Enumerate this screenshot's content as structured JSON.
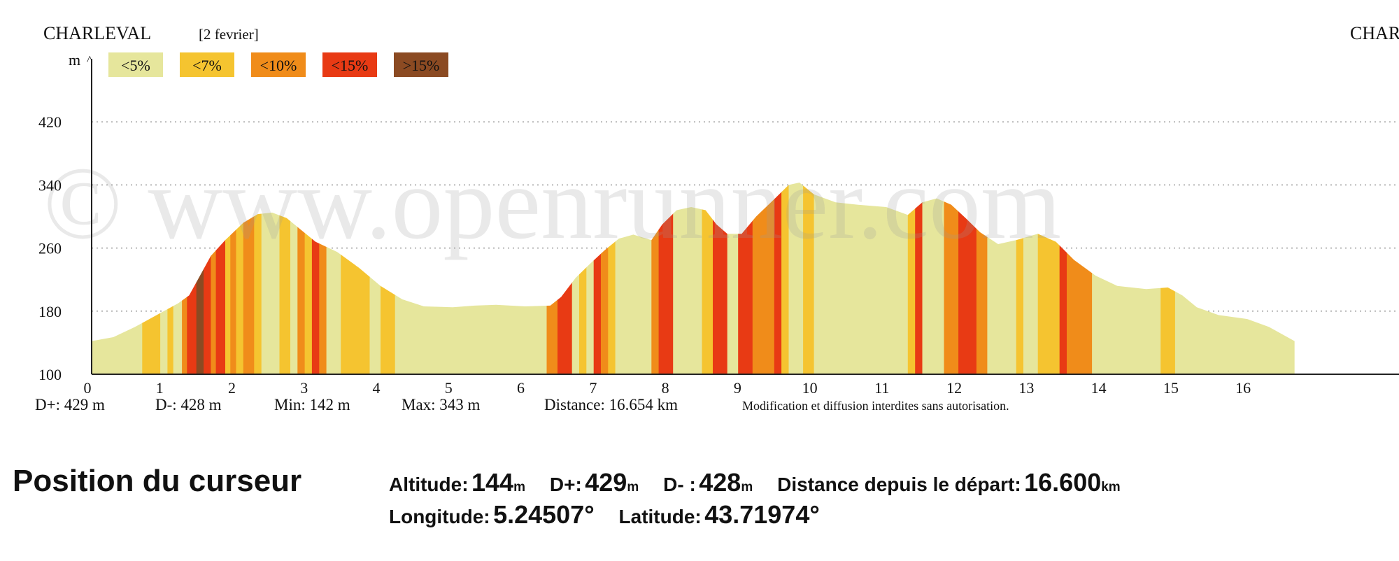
{
  "header": {
    "start_town": "CHARLEVAL",
    "date": "[2 fevrier]",
    "end_town": "CHAR"
  },
  "chart_data": {
    "type": "area",
    "xlabel": "",
    "ylabel": "m",
    "xlim": [
      0,
      18.1
    ],
    "ylim": [
      100,
      500
    ],
    "x_ticks": [
      0,
      1,
      2,
      3,
      4,
      5,
      6,
      7,
      8,
      9,
      10,
      11,
      12,
      13,
      14,
      15,
      16
    ],
    "y_ticks": [
      100,
      180,
      260,
      340,
      420
    ],
    "grid": true,
    "legend": [
      {
        "label": "<5%",
        "color": "#e6e69c"
      },
      {
        "label": "<7%",
        "color": "#f5c430"
      },
      {
        "label": "<10%",
        "color": "#f08c1a"
      },
      {
        "label": "<15%",
        "color": "#e83a14"
      },
      {
        "label": ">15%",
        "color": "#8b4a22"
      }
    ],
    "profile": [
      [
        0,
        142
      ],
      [
        0.3,
        147
      ],
      [
        0.6,
        160
      ],
      [
        0.8,
        170
      ],
      [
        1.0,
        180
      ],
      [
        1.2,
        190
      ],
      [
        1.35,
        200
      ],
      [
        1.5,
        225
      ],
      [
        1.65,
        250
      ],
      [
        1.85,
        270
      ],
      [
        2.1,
        292
      ],
      [
        2.3,
        303
      ],
      [
        2.5,
        305
      ],
      [
        2.7,
        298
      ],
      [
        2.9,
        283
      ],
      [
        3.1,
        268
      ],
      [
        3.4,
        255
      ],
      [
        3.7,
        235
      ],
      [
        4.0,
        212
      ],
      [
        4.3,
        195
      ],
      [
        4.6,
        186
      ],
      [
        5.0,
        185
      ],
      [
        5.3,
        187
      ],
      [
        5.6,
        188
      ],
      [
        6.0,
        186
      ],
      [
        6.35,
        187
      ],
      [
        6.5,
        198
      ],
      [
        6.7,
        222
      ],
      [
        6.9,
        240
      ],
      [
        7.1,
        257
      ],
      [
        7.3,
        272
      ],
      [
        7.5,
        277
      ],
      [
        7.75,
        270
      ],
      [
        7.9,
        290
      ],
      [
        8.1,
        308
      ],
      [
        8.3,
        312
      ],
      [
        8.5,
        308
      ],
      [
        8.65,
        290
      ],
      [
        8.8,
        278
      ],
      [
        9.0,
        278
      ],
      [
        9.2,
        300
      ],
      [
        9.45,
        322
      ],
      [
        9.65,
        340
      ],
      [
        9.8,
        343
      ],
      [
        10.0,
        328
      ],
      [
        10.3,
        318
      ],
      [
        10.6,
        315
      ],
      [
        11.0,
        312
      ],
      [
        11.3,
        302
      ],
      [
        11.5,
        318
      ],
      [
        11.7,
        323
      ],
      [
        11.9,
        315
      ],
      [
        12.1,
        298
      ],
      [
        12.3,
        280
      ],
      [
        12.55,
        265
      ],
      [
        12.8,
        270
      ],
      [
        13.1,
        278
      ],
      [
        13.35,
        268
      ],
      [
        13.6,
        245
      ],
      [
        13.9,
        225
      ],
      [
        14.2,
        212
      ],
      [
        14.6,
        208
      ],
      [
        14.9,
        210
      ],
      [
        15.1,
        200
      ],
      [
        15.3,
        185
      ],
      [
        15.6,
        175
      ],
      [
        16.0,
        170
      ],
      [
        16.3,
        160
      ],
      [
        16.654,
        142
      ]
    ],
    "grade_segments": [
      [
        0,
        0.7,
        0
      ],
      [
        0.7,
        0.95,
        1
      ],
      [
        0.95,
        1.05,
        0
      ],
      [
        1.05,
        1.13,
        1
      ],
      [
        1.13,
        1.25,
        0
      ],
      [
        1.25,
        1.32,
        2
      ],
      [
        1.32,
        1.45,
        3
      ],
      [
        1.45,
        1.55,
        4
      ],
      [
        1.55,
        1.65,
        3
      ],
      [
        1.65,
        1.72,
        2
      ],
      [
        1.72,
        1.85,
        3
      ],
      [
        1.85,
        1.92,
        1
      ],
      [
        1.92,
        2.0,
        2
      ],
      [
        2.0,
        2.1,
        1
      ],
      [
        2.1,
        2.25,
        2
      ],
      [
        2.25,
        2.35,
        1
      ],
      [
        2.35,
        2.6,
        0
      ],
      [
        2.6,
        2.75,
        1
      ],
      [
        2.75,
        2.85,
        0
      ],
      [
        2.85,
        2.95,
        2
      ],
      [
        2.95,
        3.05,
        1
      ],
      [
        3.05,
        3.15,
        3
      ],
      [
        3.15,
        3.25,
        2
      ],
      [
        3.25,
        3.45,
        0
      ],
      [
        3.45,
        3.85,
        1
      ],
      [
        3.85,
        4.0,
        0
      ],
      [
        4.0,
        4.2,
        1
      ],
      [
        4.2,
        6.3,
        0
      ],
      [
        6.3,
        6.45,
        2
      ],
      [
        6.45,
        6.65,
        3
      ],
      [
        6.65,
        6.75,
        0
      ],
      [
        6.75,
        6.85,
        1
      ],
      [
        6.85,
        6.95,
        0
      ],
      [
        6.95,
        7.05,
        3
      ],
      [
        7.05,
        7.15,
        2
      ],
      [
        7.15,
        7.25,
        1
      ],
      [
        7.25,
        7.75,
        0
      ],
      [
        7.75,
        7.85,
        2
      ],
      [
        7.85,
        8.05,
        3
      ],
      [
        8.05,
        8.45,
        0
      ],
      [
        8.45,
        8.6,
        1
      ],
      [
        8.6,
        8.8,
        3
      ],
      [
        8.8,
        8.95,
        0
      ],
      [
        8.95,
        9.15,
        3
      ],
      [
        9.15,
        9.45,
        2
      ],
      [
        9.45,
        9.55,
        3
      ],
      [
        9.55,
        9.65,
        1
      ],
      [
        9.65,
        9.85,
        0
      ],
      [
        9.85,
        10.0,
        1
      ],
      [
        10.0,
        11.3,
        0
      ],
      [
        11.3,
        11.4,
        1
      ],
      [
        11.4,
        11.5,
        3
      ],
      [
        11.5,
        11.8,
        0
      ],
      [
        11.8,
        12.0,
        2
      ],
      [
        12.0,
        12.25,
        3
      ],
      [
        12.25,
        12.4,
        2
      ],
      [
        12.4,
        12.8,
        0
      ],
      [
        12.8,
        12.9,
        1
      ],
      [
        12.9,
        13.1,
        0
      ],
      [
        13.1,
        13.4,
        1
      ],
      [
        13.4,
        13.5,
        3
      ],
      [
        13.5,
        13.85,
        2
      ],
      [
        13.85,
        14.8,
        0
      ],
      [
        14.8,
        15.0,
        1
      ],
      [
        15.0,
        16.654,
        0
      ]
    ],
    "stats": {
      "d_plus": "D+: 429 m",
      "d_minus": "D-: 428 m",
      "min": "Min: 142 m",
      "max": "Max: 343 m",
      "distance": "Distance: 16.654 km",
      "notice": "Modification et diffusion interdites sans autorisation."
    },
    "watermark": "© www.openrunner.com"
  },
  "cursor": {
    "title": "Position du curseur",
    "altitude_label": "Altitude:",
    "altitude_value": "144",
    "altitude_unit": "m",
    "dplus_label": "D+:",
    "dplus_value": "429",
    "dplus_unit": "m",
    "dminus_label": "D- :",
    "dminus_value": "428",
    "dminus_unit": "m",
    "distance_label": "Distance depuis le départ:",
    "distance_value": "16.600",
    "distance_unit": "km",
    "longitude_label": "Longitude:",
    "longitude_value": "5.24507°",
    "latitude_label": "Latitude:",
    "latitude_value": "43.71974°"
  }
}
